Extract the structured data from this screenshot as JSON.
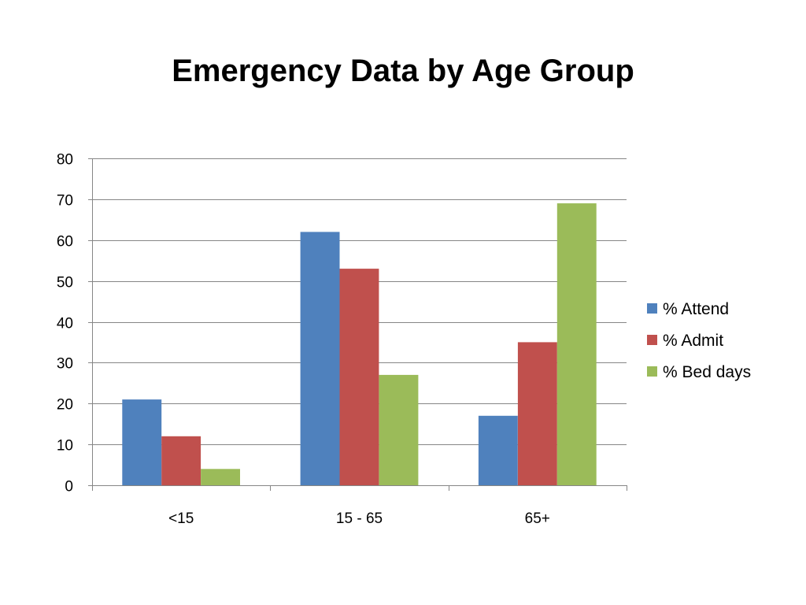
{
  "chart_data": {
    "type": "bar",
    "title": "Emergency Data by Age Group",
    "xlabel": "",
    "ylabel": "",
    "categories": [
      "<15",
      "15 - 65",
      "65+"
    ],
    "series": [
      {
        "name": "% Attend",
        "values": [
          21,
          62,
          17
        ],
        "color": "#4F81BD"
      },
      {
        "name": "% Admit",
        "values": [
          12,
          53,
          35
        ],
        "color": "#C0504D"
      },
      {
        "name": "% Bed days",
        "values": [
          4,
          27,
          69
        ],
        "color": "#9BBB59"
      }
    ],
    "ylim": [
      0,
      80
    ],
    "yticks": [
      0,
      10,
      20,
      30,
      40,
      50,
      60,
      70,
      80
    ],
    "grid": true,
    "legend_position": "right"
  }
}
